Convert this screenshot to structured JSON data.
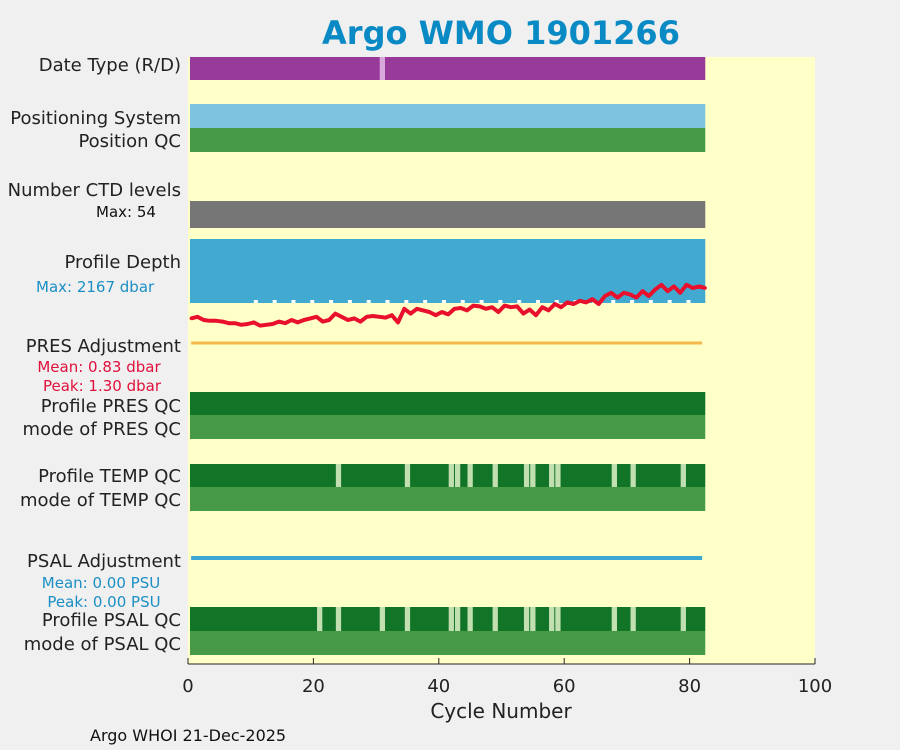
{
  "chart_data": {
    "type": "bar",
    "title": "Argo WMO 1901266",
    "xlabel": "Cycle Number",
    "xlim": [
      0,
      100
    ],
    "xticks": [
      0,
      20,
      40,
      60,
      80,
      100
    ],
    "last_cycle": 82.5,
    "colors": {
      "title": "#0a8ac4",
      "plot_background": "#ffffc8",
      "date_type_realtime": "#983a9a",
      "date_type_flag": "#d8a8dc",
      "positioning_system": "#7ec4e0",
      "qc_good": "#479b47",
      "profile_qc_dark": "#127427",
      "qc_flag_light": "#c2dfb2",
      "ctd_levels": "#767676",
      "profile_depth_fill": "#42a9d0",
      "depth_line": "#e8102c",
      "pres_adjustment_line": "#f2b84a",
      "psal_adjustment_line": "#3ba7d2",
      "pres_stats_text": "#e0103c",
      "depth_max_text": "#1b8fc4",
      "psal_stats_text": "#1b8fc4"
    },
    "rows": [
      {
        "label": "Date Type (R/D)",
        "color": "#983a9a",
        "flags": [
          30.5
        ]
      },
      {
        "label": "Positioning System",
        "color": "#7ec4e0",
        "flags": []
      },
      {
        "label": "Position QC",
        "color": "#479b47",
        "flags": []
      },
      {
        "label": "Number CTD levels",
        "color": "#767676",
        "flags": [],
        "max_label": "Max: 54"
      },
      {
        "label": "Profile Depth",
        "color": "#42a9d0",
        "max_label": "Max: 2167 dbar"
      },
      {
        "label": "PRES Adjustment",
        "mean_label": "Mean: 0.83 dbar",
        "peak_label": "Peak: 1.30 dbar"
      },
      {
        "label": "Profile PRES QC",
        "color": "#127427",
        "flags": []
      },
      {
        "label": "mode of PRES QC",
        "color": "#479b47",
        "flags": []
      },
      {
        "label": "Profile TEMP QC",
        "color": "#127427",
        "flags": [
          23.5,
          34.5,
          41.5,
          42.5,
          44.5,
          48.5,
          53.5,
          54.5,
          57.5,
          58.5,
          67.5,
          70.5,
          78.5
        ]
      },
      {
        "label": "mode of TEMP QC",
        "color": "#479b47",
        "flags": []
      },
      {
        "label": "PSAL Adjustment",
        "mean_label": "Mean: 0.00 PSU",
        "peak_label": "Peak: 0.00 PSU"
      },
      {
        "label": "Profile PSAL QC",
        "color": "#127427",
        "flags": [
          20.5,
          23.5,
          30.5,
          34.5,
          41.5,
          42.5,
          44.5,
          48.5,
          53.5,
          54.5,
          57.5,
          58.5,
          67.5,
          70.5,
          78.5
        ]
      },
      {
        "label": "mode of PSAL QC",
        "color": "#479b47",
        "flags": []
      }
    ],
    "depth_series": {
      "name": "Profile depth relative level",
      "cycles": [
        0.5,
        1.5,
        2.5,
        3.5,
        4.5,
        5.5,
        6.5,
        7.5,
        8.5,
        9.5,
        10.5,
        11.5,
        12.5,
        13.5,
        14.5,
        15.5,
        16.5,
        17.5,
        18.5,
        19.5,
        20.5,
        21.5,
        22.5,
        23.5,
        24.5,
        25.5,
        26.5,
        27.5,
        28.5,
        29.5,
        30.5,
        31.5,
        32.5,
        33.5,
        34.5,
        35.5,
        36.5,
        37.5,
        38.5,
        39.5,
        40.5,
        41.5,
        42.5,
        43.5,
        44.5,
        45.5,
        46.5,
        47.5,
        48.5,
        49.5,
        50.5,
        51.5,
        52.5,
        53.5,
        54.5,
        55.5,
        56.5,
        57.5,
        58.5,
        59.5,
        60.5,
        61.5,
        62.5,
        63.5,
        64.5,
        65.5,
        66.5,
        67.5,
        68.5,
        69.5,
        70.5,
        71.5,
        72.5,
        73.5,
        74.5,
        75.5,
        76.5,
        77.5,
        78.5,
        79.5,
        80.5,
        81.5,
        82.5
      ],
      "values": [
        0.12,
        0.14,
        0.1,
        0.09,
        0.09,
        0.08,
        0.06,
        0.06,
        0.04,
        0.05,
        0.07,
        0.03,
        0.04,
        0.05,
        0.08,
        0.06,
        0.1,
        0.07,
        0.1,
        0.12,
        0.14,
        0.08,
        0.1,
        0.18,
        0.14,
        0.1,
        0.12,
        0.08,
        0.14,
        0.15,
        0.14,
        0.13,
        0.16,
        0.07,
        0.24,
        0.18,
        0.24,
        0.22,
        0.2,
        0.16,
        0.2,
        0.17,
        0.24,
        0.25,
        0.22,
        0.28,
        0.27,
        0.24,
        0.26,
        0.2,
        0.28,
        0.26,
        0.27,
        0.18,
        0.23,
        0.16,
        0.26,
        0.22,
        0.3,
        0.26,
        0.32,
        0.3,
        0.34,
        0.32,
        0.36,
        0.3,
        0.4,
        0.44,
        0.38,
        0.44,
        0.42,
        0.38,
        0.46,
        0.4,
        0.48,
        0.54,
        0.46,
        0.52,
        0.44,
        0.54,
        0.5,
        0.52,
        0.5
      ]
    },
    "footer": "Argo WHOI 21-Dec-2025"
  }
}
